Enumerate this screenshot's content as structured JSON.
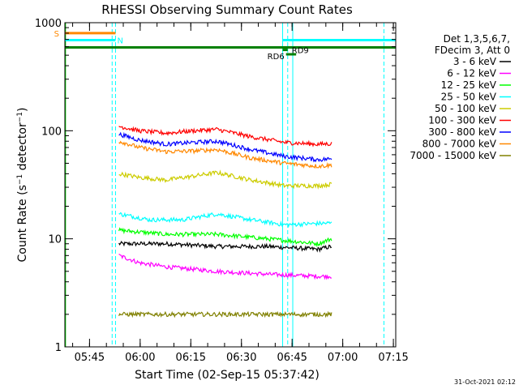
{
  "chart_data": {
    "type": "line",
    "title": "RHESSI Observing Summary Count Rates",
    "xlabel": "Start Time (02-Sep-15 05:37:42)",
    "ylabel": "Count Rate (s-1 detector-1)",
    "ylabel_parts": {
      "main": "Count Rate (s",
      "exp1": "−1",
      "mid": " detector",
      "exp2": "−1",
      "end": ")"
    },
    "x_unit": "minutes after 05:37:42",
    "xlim": [
      0,
      98
    ],
    "ylim": [
      1,
      1000
    ],
    "y_scale": "log",
    "y_ticks": [
      {
        "value": 1,
        "label": "1"
      },
      {
        "value": 10,
        "label": "10"
      },
      {
        "value": 100,
        "label": "100"
      },
      {
        "value": 1000,
        "label": "1000"
      }
    ],
    "x_ticks": [
      {
        "value": 7.3,
        "label": "05:45"
      },
      {
        "value": 22.3,
        "label": "06:00"
      },
      {
        "value": 37.3,
        "label": "06:15"
      },
      {
        "value": 52.3,
        "label": "06:30"
      },
      {
        "value": 67.3,
        "label": "06:45"
      },
      {
        "value": 82.3,
        "label": "07:00"
      },
      {
        "value": 97.3,
        "label": "07:15"
      }
    ],
    "legend_header": [
      "Det 1,3,5,6,7,",
      "FDecim 3, Att 0"
    ],
    "legend_placement": "right",
    "series": [
      {
        "name": "3 - 6 keV",
        "color": "#000000",
        "points": [
          [
            16,
            9
          ],
          [
            30,
            9
          ],
          [
            45,
            8.5
          ],
          [
            60,
            8.5
          ],
          [
            75,
            8
          ],
          [
            79,
            8.5
          ]
        ]
      },
      {
        "name": "6 - 12 keV",
        "color": "#ff00ff",
        "points": [
          [
            16,
            7
          ],
          [
            22,
            6
          ],
          [
            30,
            5.5
          ],
          [
            45,
            5
          ],
          [
            60,
            4.7
          ],
          [
            75,
            4.5
          ],
          [
            79,
            4.5
          ]
        ]
      },
      {
        "name": "12 - 25 keV",
        "color": "#00ff00",
        "points": [
          [
            16,
            12
          ],
          [
            30,
            11
          ],
          [
            45,
            11
          ],
          [
            60,
            10
          ],
          [
            75,
            9
          ],
          [
            79,
            10
          ]
        ]
      },
      {
        "name": "25 - 50 keV",
        "color": "#00ffff",
        "points": [
          [
            16,
            17
          ],
          [
            25,
            15
          ],
          [
            35,
            15
          ],
          [
            45,
            17
          ],
          [
            55,
            15
          ],
          [
            65,
            13.5
          ],
          [
            79,
            14
          ]
        ]
      },
      {
        "name": "50 - 100 keV",
        "color": "#cccc00",
        "points": [
          [
            16,
            40
          ],
          [
            22,
            37
          ],
          [
            30,
            35
          ],
          [
            38,
            38
          ],
          [
            45,
            41
          ],
          [
            55,
            35
          ],
          [
            65,
            31
          ],
          [
            75,
            31
          ],
          [
            79,
            32
          ]
        ]
      },
      {
        "name": "100 - 300 keV",
        "color": "#ff0000",
        "points": [
          [
            16,
            110
          ],
          [
            22,
            100
          ],
          [
            30,
            95
          ],
          [
            38,
            100
          ],
          [
            45,
            103
          ],
          [
            55,
            88
          ],
          [
            65,
            78
          ],
          [
            75,
            75
          ],
          [
            79,
            76
          ]
        ]
      },
      {
        "name": "300 - 800 keV",
        "color": "#0000ff",
        "points": [
          [
            16,
            93
          ],
          [
            22,
            82
          ],
          [
            30,
            75
          ],
          [
            38,
            78
          ],
          [
            45,
            80
          ],
          [
            55,
            67
          ],
          [
            65,
            58
          ],
          [
            75,
            54
          ],
          [
            79,
            55
          ]
        ]
      },
      {
        "name": "800 - 7000 keV",
        "color": "#ff8800",
        "points": [
          [
            16,
            80
          ],
          [
            22,
            70
          ],
          [
            30,
            64
          ],
          [
            38,
            65
          ],
          [
            45,
            67
          ],
          [
            55,
            56
          ],
          [
            65,
            50
          ],
          [
            75,
            47
          ],
          [
            79,
            48
          ]
        ]
      },
      {
        "name": "7000 - 15000 keV",
        "color": "#808000",
        "points": [
          [
            16,
            2
          ],
          [
            79,
            2
          ]
        ]
      }
    ],
    "bars": [
      {
        "label": "S",
        "color": "#ff8800",
        "y": 800,
        "x_start": 0,
        "x_end": 15
      },
      {
        "label": "N",
        "color": "#00ffff",
        "y": 690,
        "x_start": 0,
        "x_end": 15
      },
      {
        "label": "",
        "color": "#00ffff",
        "y": 690,
        "x_start": 64.5,
        "x_end": 98
      },
      {
        "label": "",
        "color": "#008000",
        "y": 590,
        "x_start": 0,
        "x_end": 98
      },
      {
        "label": "RD9",
        "color": "#008000",
        "y": 560,
        "x_start": 64.5,
        "x_end": 66
      },
      {
        "label": "RD6",
        "color": "#008000",
        "y": 510,
        "x_start": 65.5,
        "x_end": 68.5
      }
    ],
    "vlines": [
      {
        "x": 0.2,
        "color": "#00cc00",
        "style": "solid"
      },
      {
        "x": 14,
        "color": "#00ffff",
        "style": "dashed"
      },
      {
        "x": 15,
        "color": "#00ffff",
        "style": "dashed"
      },
      {
        "x": 64.5,
        "color": "#00ffff",
        "style": "solid"
      },
      {
        "x": 66,
        "color": "#00ffff",
        "style": "dashed"
      },
      {
        "x": 67.5,
        "color": "#00ffff",
        "style": "solid"
      },
      {
        "x": 94.5,
        "color": "#00ffff",
        "style": "dashed"
      }
    ],
    "grid": false
  },
  "footer": {
    "date": "31-Oct-2021 02:12"
  }
}
